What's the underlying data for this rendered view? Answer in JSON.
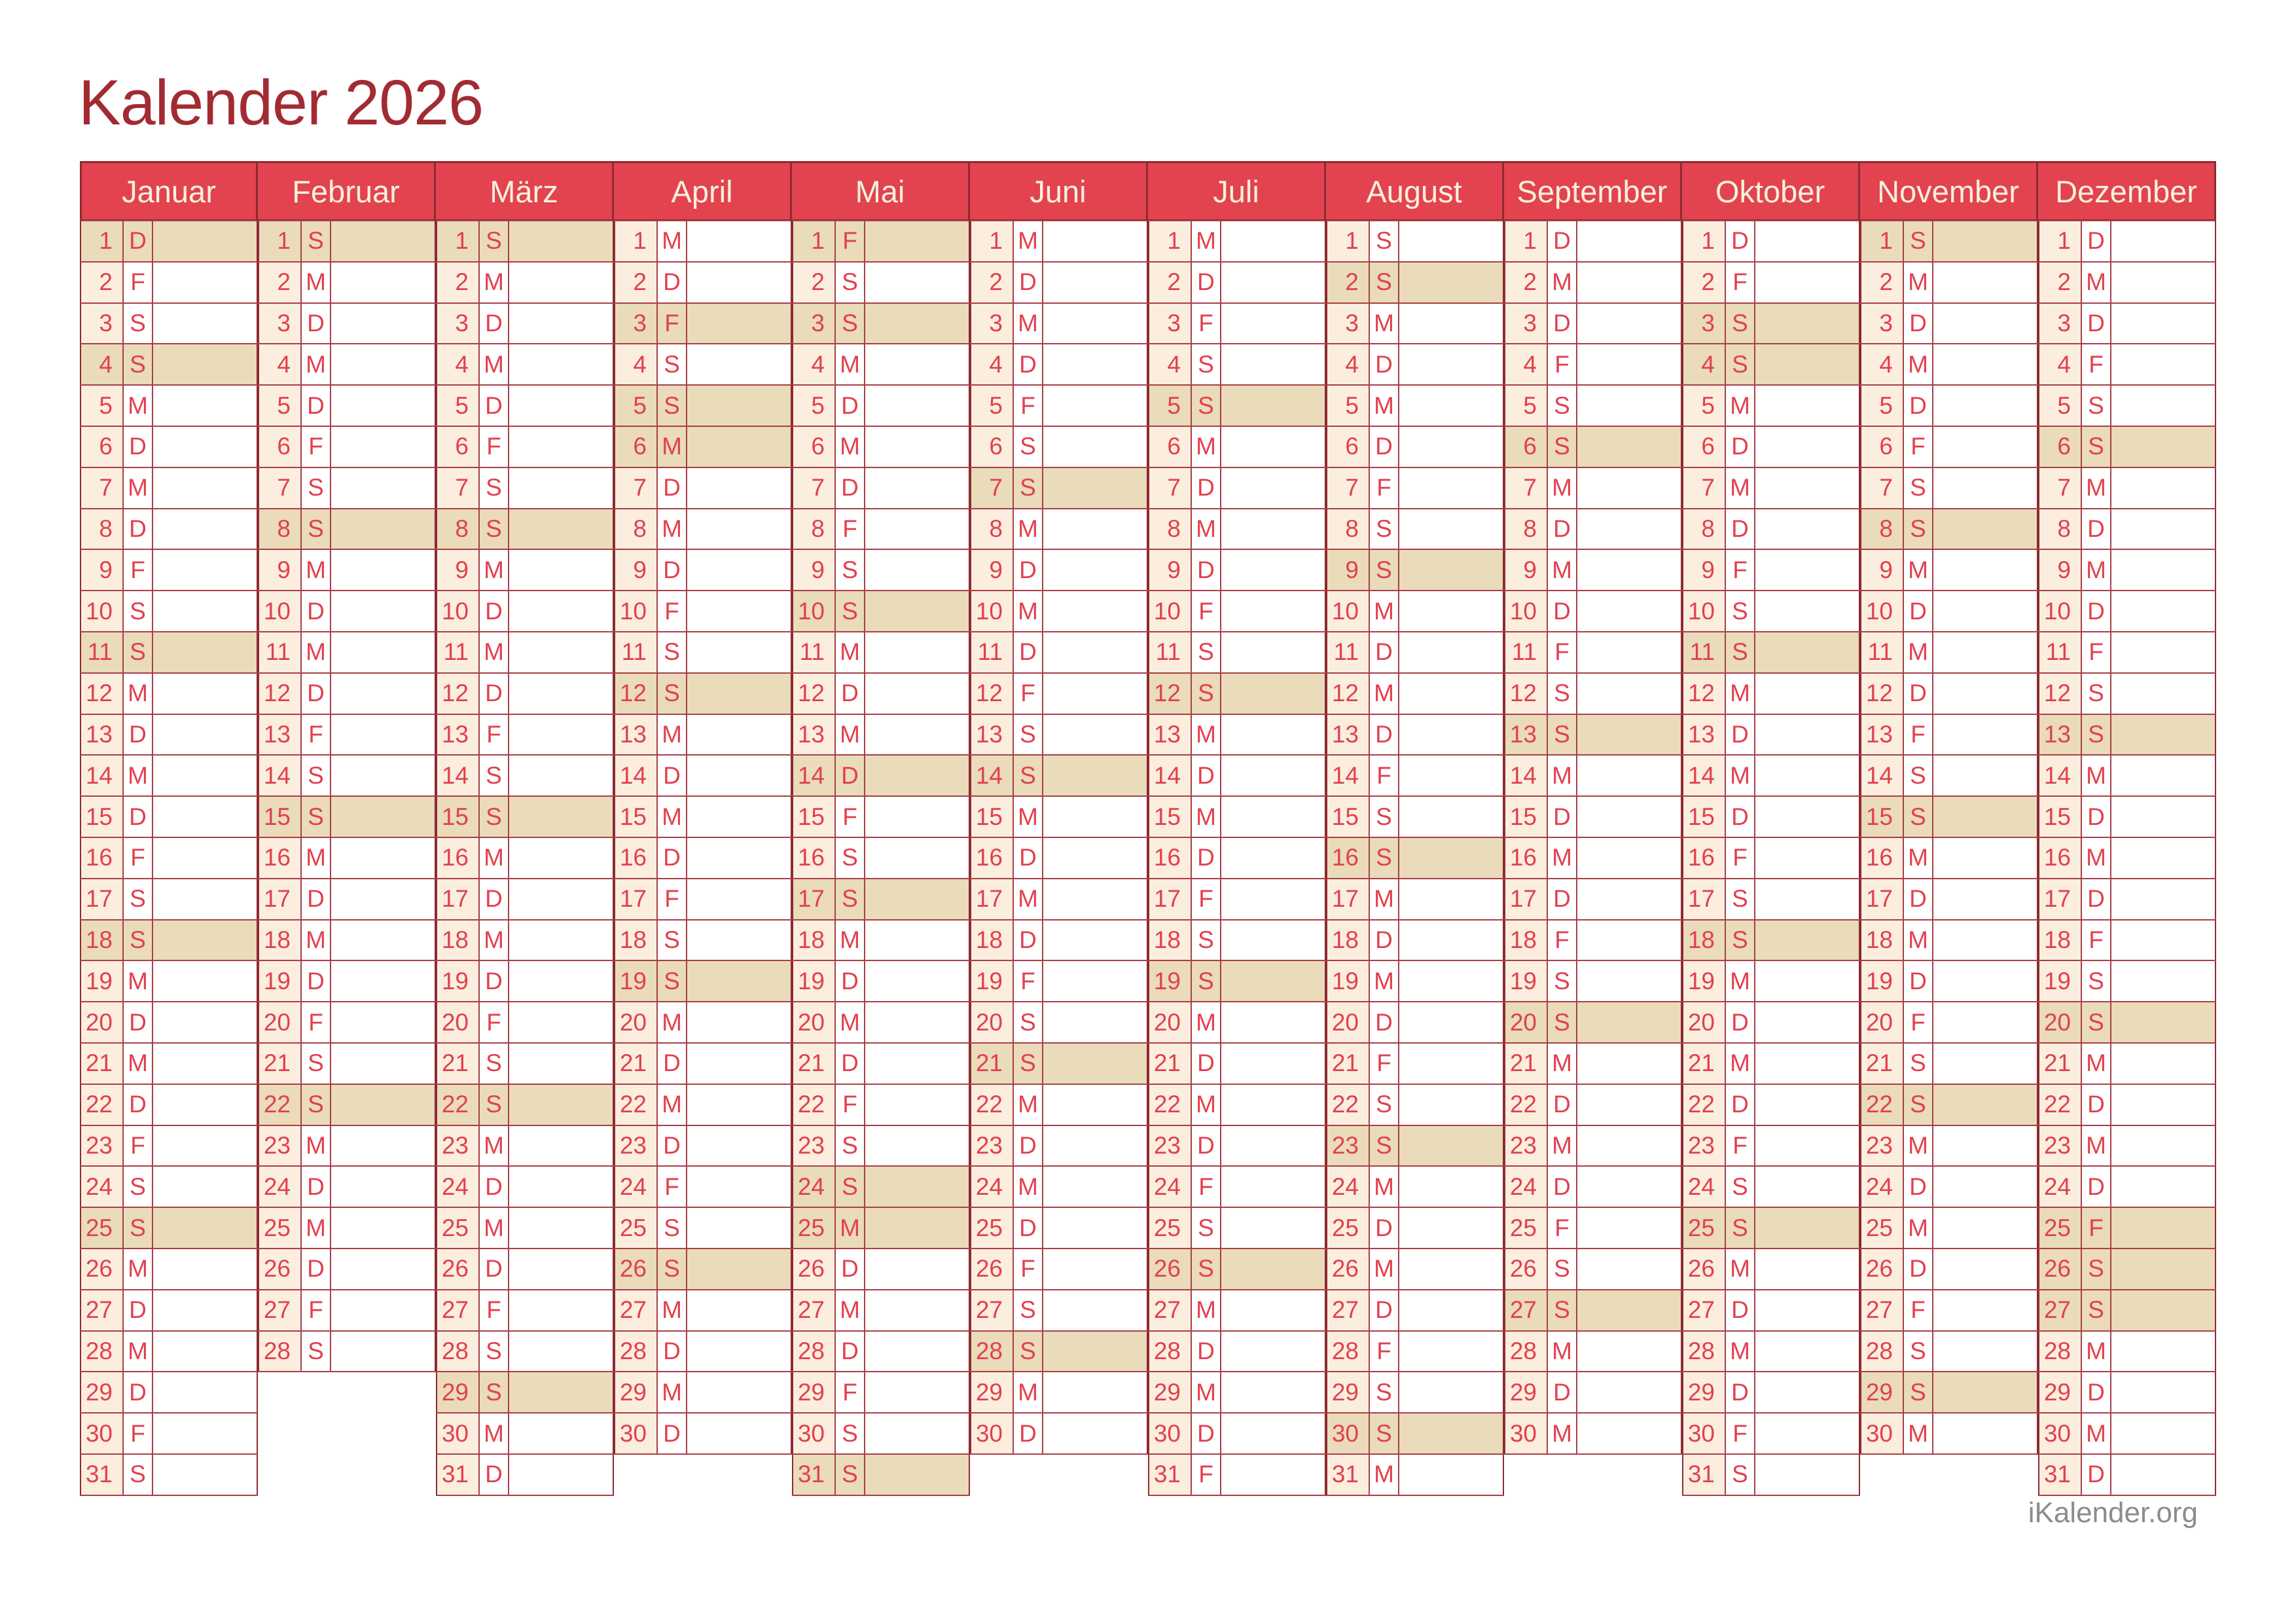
{
  "title": "Kalender 2026",
  "footer": "iKalender.org",
  "colors": {
    "title_text": "#a22b33",
    "header_bg": "#e2434f",
    "header_text": "#f8f0dc",
    "dark_border": "#8e2a32",
    "grid_border": "#a83f47",
    "day_text": "#e2404e",
    "number_cell_bg": "#fbeede",
    "highlight_bg": "#eadbba",
    "footer_text": "#8c8c8c"
  },
  "weekday_letters_mon_to_sun": [
    "M",
    "D",
    "M",
    "D",
    "F",
    "S",
    "S"
  ],
  "months": [
    {
      "name": "Januar",
      "days": 31,
      "letters": [
        "D",
        "F",
        "S",
        "S",
        "M",
        "D",
        "M",
        "D",
        "F",
        "S",
        "S",
        "M",
        "D",
        "M",
        "D",
        "F",
        "S",
        "S",
        "M",
        "D",
        "M",
        "D",
        "F",
        "S",
        "S",
        "M",
        "D",
        "M",
        "D",
        "F",
        "S"
      ],
      "highlighted_days": [
        1,
        4,
        11,
        18,
        25
      ]
    },
    {
      "name": "Februar",
      "days": 28,
      "letters": [
        "S",
        "M",
        "D",
        "M",
        "D",
        "F",
        "S",
        "S",
        "M",
        "D",
        "M",
        "D",
        "F",
        "S",
        "S",
        "M",
        "D",
        "M",
        "D",
        "F",
        "S",
        "S",
        "M",
        "D",
        "M",
        "D",
        "F",
        "S"
      ],
      "highlighted_days": [
        1,
        8,
        15,
        22
      ]
    },
    {
      "name": "März",
      "days": 31,
      "letters": [
        "S",
        "M",
        "D",
        "M",
        "D",
        "F",
        "S",
        "S",
        "M",
        "D",
        "M",
        "D",
        "F",
        "S",
        "S",
        "M",
        "D",
        "M",
        "D",
        "F",
        "S",
        "S",
        "M",
        "D",
        "M",
        "D",
        "F",
        "S",
        "S",
        "M",
        "D"
      ],
      "highlighted_days": [
        1,
        8,
        15,
        22,
        29
      ]
    },
    {
      "name": "April",
      "days": 30,
      "letters": [
        "M",
        "D",
        "F",
        "S",
        "S",
        "M",
        "D",
        "M",
        "D",
        "F",
        "S",
        "S",
        "M",
        "D",
        "M",
        "D",
        "F",
        "S",
        "S",
        "M",
        "D",
        "M",
        "D",
        "F",
        "S",
        "S",
        "M",
        "D",
        "M",
        "D"
      ],
      "highlighted_days": [
        3,
        5,
        6,
        12,
        19,
        26
      ]
    },
    {
      "name": "Mai",
      "days": 31,
      "letters": [
        "F",
        "S",
        "S",
        "M",
        "D",
        "M",
        "D",
        "F",
        "S",
        "S",
        "M",
        "D",
        "M",
        "D",
        "F",
        "S",
        "S",
        "M",
        "D",
        "M",
        "D",
        "F",
        "S",
        "S",
        "M",
        "D",
        "M",
        "D",
        "F",
        "S",
        "S"
      ],
      "highlighted_days": [
        1,
        3,
        10,
        14,
        17,
        24,
        25,
        31
      ]
    },
    {
      "name": "Juni",
      "days": 30,
      "letters": [
        "M",
        "D",
        "M",
        "D",
        "F",
        "S",
        "S",
        "M",
        "D",
        "M",
        "D",
        "F",
        "S",
        "S",
        "M",
        "D",
        "M",
        "D",
        "F",
        "S",
        "S",
        "M",
        "D",
        "M",
        "D",
        "F",
        "S",
        "S",
        "M",
        "D"
      ],
      "highlighted_days": [
        7,
        14,
        21,
        28
      ]
    },
    {
      "name": "Juli",
      "days": 31,
      "letters": [
        "M",
        "D",
        "F",
        "S",
        "S",
        "M",
        "D",
        "M",
        "D",
        "F",
        "S",
        "S",
        "M",
        "D",
        "M",
        "D",
        "F",
        "S",
        "S",
        "M",
        "D",
        "M",
        "D",
        "F",
        "S",
        "S",
        "M",
        "D",
        "M",
        "D",
        "F"
      ],
      "highlighted_days": [
        5,
        12,
        19,
        26
      ]
    },
    {
      "name": "August",
      "days": 31,
      "letters": [
        "S",
        "S",
        "M",
        "D",
        "M",
        "D",
        "F",
        "S",
        "S",
        "M",
        "D",
        "M",
        "D",
        "F",
        "S",
        "S",
        "M",
        "D",
        "M",
        "D",
        "F",
        "S",
        "S",
        "M",
        "D",
        "M",
        "D",
        "F",
        "S",
        "S",
        "M"
      ],
      "highlighted_days": [
        2,
        9,
        16,
        23,
        30
      ]
    },
    {
      "name": "September",
      "days": 30,
      "letters": [
        "D",
        "M",
        "D",
        "F",
        "S",
        "S",
        "M",
        "D",
        "M",
        "D",
        "F",
        "S",
        "S",
        "M",
        "D",
        "M",
        "D",
        "F",
        "S",
        "S",
        "M",
        "D",
        "M",
        "D",
        "F",
        "S",
        "S",
        "M",
        "D",
        "M"
      ],
      "highlighted_days": [
        6,
        13,
        20,
        27
      ]
    },
    {
      "name": "Oktober",
      "days": 31,
      "letters": [
        "D",
        "F",
        "S",
        "S",
        "M",
        "D",
        "M",
        "D",
        "F",
        "S",
        "S",
        "M",
        "D",
        "M",
        "D",
        "F",
        "S",
        "S",
        "M",
        "D",
        "M",
        "D",
        "F",
        "S",
        "S",
        "M",
        "D",
        "M",
        "D",
        "F",
        "S"
      ],
      "highlighted_days": [
        3,
        4,
        11,
        18,
        25
      ]
    },
    {
      "name": "November",
      "days": 30,
      "letters": [
        "S",
        "M",
        "D",
        "M",
        "D",
        "F",
        "S",
        "S",
        "M",
        "D",
        "M",
        "D",
        "F",
        "S",
        "S",
        "M",
        "D",
        "M",
        "D",
        "F",
        "S",
        "S",
        "M",
        "D",
        "M",
        "D",
        "F",
        "S",
        "S",
        "M"
      ],
      "highlighted_days": [
        1,
        8,
        15,
        22,
        29
      ]
    },
    {
      "name": "Dezember",
      "days": 31,
      "letters": [
        "D",
        "M",
        "D",
        "F",
        "S",
        "S",
        "M",
        "D",
        "M",
        "D",
        "F",
        "S",
        "S",
        "M",
        "D",
        "M",
        "D",
        "F",
        "S",
        "S",
        "M",
        "D",
        "M",
        "D",
        "F",
        "S",
        "S",
        "M",
        "D",
        "M",
        "D"
      ],
      "highlighted_days": [
        6,
        13,
        20,
        25,
        26,
        27
      ]
    }
  ]
}
